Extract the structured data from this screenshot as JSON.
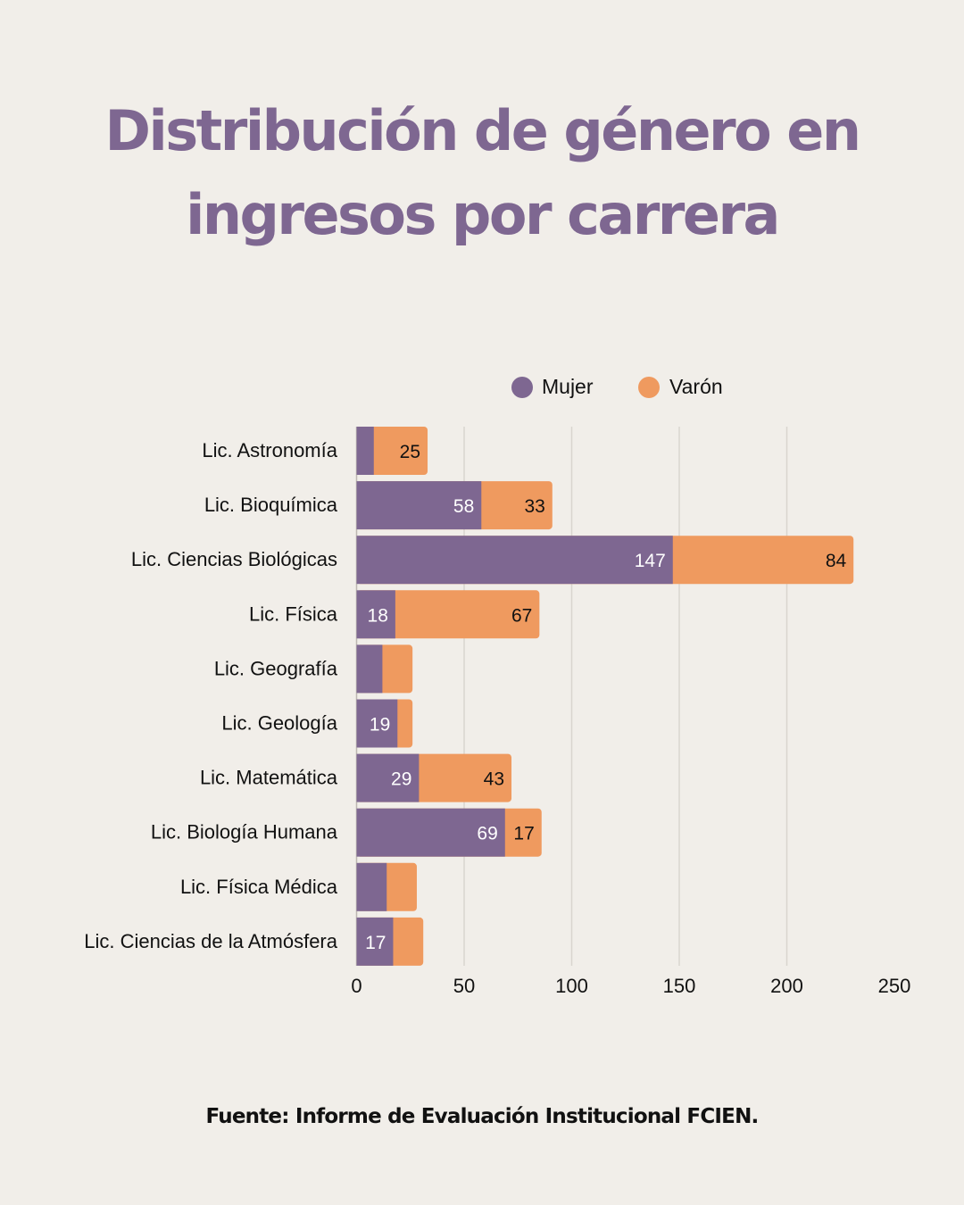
{
  "page": {
    "title_line1": "Distribución de género en",
    "title_line2": "ingresos por carrera",
    "footer": "Fuente: Informe de Evaluación Institucional FCIEN."
  },
  "colors": {
    "background": "#f1eee9",
    "title": "#7e6791",
    "mujer": "#7e6791",
    "varon": "#ef9a5f",
    "grid": "#d9d5cf"
  },
  "chart_data": {
    "type": "bar",
    "orientation": "horizontal",
    "stacked": true,
    "title": "Distribución de género en ingresos por carrera",
    "xlabel": "",
    "ylabel": "",
    "xlim": [
      0,
      250
    ],
    "xticks": [
      0,
      50,
      100,
      150,
      200,
      250
    ],
    "grid": true,
    "legend_position": "top",
    "categories": [
      "Lic. Astronomía",
      "Lic. Bioquímica",
      "Lic. Ciencias Biológicas",
      "Lic. Física",
      "Lic. Geografía",
      "Lic. Geología",
      "Lic. Matemática",
      "Lic. Biología Humana",
      "Lic. Física Médica",
      "Lic. Ciencias de la Atmósfera"
    ],
    "series": [
      {
        "name": "Mujer",
        "values": [
          8,
          58,
          147,
          18,
          12,
          19,
          29,
          69,
          14,
          17
        ],
        "labels": [
          "",
          "58",
          "147",
          "18",
          "",
          "19",
          "29",
          "69",
          "",
          "17"
        ]
      },
      {
        "name": "Varón",
        "values": [
          25,
          33,
          84,
          67,
          14,
          7,
          43,
          17,
          14,
          14
        ],
        "labels": [
          "25",
          "33",
          "84",
          "67",
          "",
          "",
          "43",
          "17",
          "",
          ""
        ]
      }
    ]
  }
}
